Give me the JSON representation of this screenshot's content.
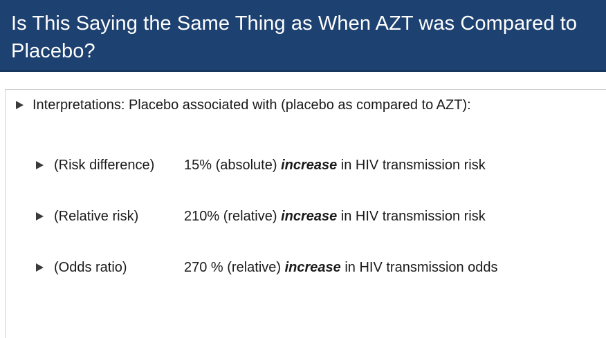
{
  "slide": {
    "title": "Is This Saying the Same Thing as When AZT was Compared to Placebo?",
    "main_bullet": "Interpretations: Placebo associated with (placebo as compared to AZT):",
    "items": [
      {
        "label": "(Risk difference)",
        "value_prefix": "15% (absolute) ",
        "value_emphasis": "increase",
        "value_suffix": " in HIV transmission risk"
      },
      {
        "label": "(Relative risk)",
        "value_prefix": "210% (relative) ",
        "value_emphasis": "increase",
        "value_suffix": " in HIV transmission risk"
      },
      {
        "label": "(Odds ratio)",
        "value_prefix": "270 % (relative) ",
        "value_emphasis": "increase",
        "value_suffix": " in HIV transmission odds"
      }
    ]
  }
}
